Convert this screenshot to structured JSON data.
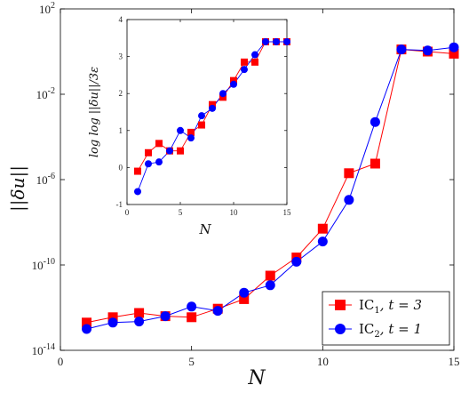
{
  "chart_data": [
    {
      "id": "main",
      "type": "line",
      "xlabel": "N",
      "ylabel": "||δu||",
      "xlim": [
        0,
        15
      ],
      "ylim_exp": [
        -14,
        2
      ],
      "yscale": "log",
      "xticks": [
        "0",
        "5",
        "10",
        "15"
      ],
      "yticks": [
        {
          "base": "10",
          "exp": "2",
          "value_exp": 2
        },
        {
          "base": "10",
          "exp": "-2",
          "value_exp": -2
        },
        {
          "base": "10",
          "exp": "-6",
          "value_exp": -6
        },
        {
          "base": "10",
          "exp": "-10",
          "value_exp": -10
        },
        {
          "base": "10",
          "exp": "-14",
          "value_exp": -14
        }
      ],
      "series": [
        {
          "name": "IC1",
          "legend": {
            "base": "IC",
            "sub": "1",
            "rest": ",  t = 3"
          },
          "color": "#ff0000",
          "marker": "square",
          "x": [
            1,
            2,
            3,
            4,
            5,
            6,
            7,
            8,
            9,
            10,
            11,
            12,
            13,
            14,
            15
          ],
          "y_exp": [
            -12.7,
            -12.45,
            -12.25,
            -12.4,
            -12.45,
            -12.05,
            -11.6,
            -10.5,
            -9.65,
            -8.3,
            -5.7,
            -5.25,
            0.1,
            0.0,
            -0.1
          ]
        },
        {
          "name": "IC2",
          "legend": {
            "base": "IC",
            "sub": "2",
            "rest": ",  t = 1"
          },
          "color": "#0000ff",
          "marker": "circle",
          "x": [
            1,
            2,
            3,
            4,
            5,
            6,
            7,
            8,
            9,
            10,
            11,
            12,
            13,
            14,
            15
          ],
          "y_exp": [
            -13.0,
            -12.7,
            -12.65,
            -12.4,
            -11.95,
            -12.15,
            -11.3,
            -10.95,
            -9.85,
            -8.9,
            -6.95,
            -3.3,
            0.1,
            0.05,
            0.2
          ]
        }
      ],
      "legend_position": "bottom-right"
    },
    {
      "id": "inset",
      "type": "line",
      "xlabel": "N",
      "ylabel": "log log ||δu||/3ε",
      "xlim": [
        0,
        15
      ],
      "ylim": [
        -1,
        4
      ],
      "xticks": [
        "0",
        "5",
        "10",
        "15"
      ],
      "yticks": [
        "-1",
        "0",
        "1",
        "2",
        "3",
        "4"
      ],
      "series": [
        {
          "name": "IC1",
          "color": "#ff0000",
          "marker": "square",
          "x": [
            1,
            2,
            3,
            4,
            5,
            6,
            7,
            8,
            9,
            10,
            11,
            12,
            13,
            14,
            15
          ],
          "y": [
            -0.1,
            0.4,
            0.65,
            0.45,
            0.45,
            0.95,
            1.15,
            1.7,
            1.9,
            2.35,
            2.85,
            2.85,
            3.4,
            3.4,
            3.4
          ]
        },
        {
          "name": "IC2",
          "color": "#0000ff",
          "marker": "circle",
          "x": [
            1,
            2,
            3,
            4,
            5,
            6,
            7,
            8,
            9,
            10,
            11,
            12,
            13,
            14,
            15
          ],
          "y": [
            -0.65,
            0.1,
            0.15,
            0.45,
            1.0,
            0.8,
            1.4,
            1.6,
            2.0,
            2.25,
            2.65,
            3.05,
            3.4,
            3.4,
            3.4
          ]
        }
      ]
    }
  ]
}
